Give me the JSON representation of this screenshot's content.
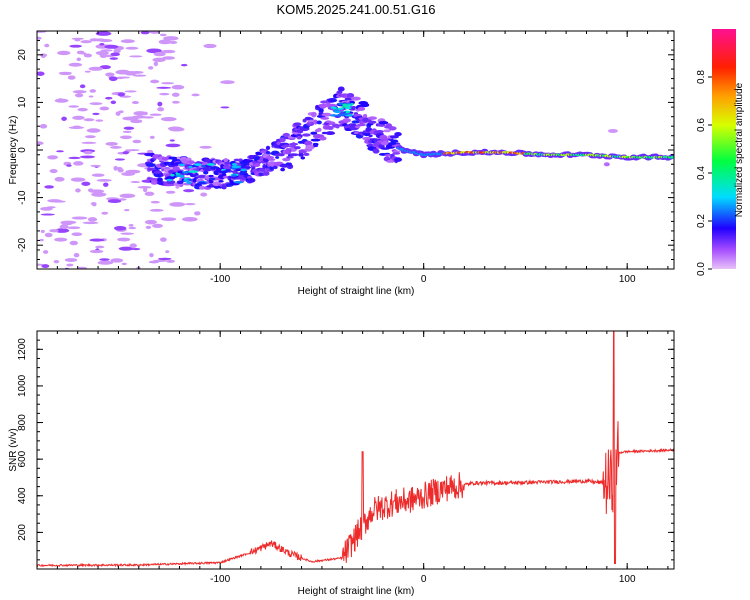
{
  "title": "KOM5.2025.241.00.51.G16",
  "colors": {
    "snr_line": "#ee2b2b",
    "axis": "#000000",
    "bg": "#ffffff"
  },
  "chart_data": [
    {
      "type": "heatmap",
      "name": "spectrogram",
      "xlabel": "Height of straight line (km)",
      "ylabel": "Frequency (Hz)",
      "xlim": [
        -190,
        123
      ],
      "ylim": [
        -25,
        25
      ],
      "x_ticks": [
        -100,
        0,
        100
      ],
      "y_ticks": [
        -20,
        -10,
        0,
        10,
        20
      ],
      "colorbar": {
        "label": "Normalized spectral amplitude",
        "ticks": [
          0.0,
          0.2,
          0.4,
          0.6,
          0.8
        ],
        "range": [
          0,
          1
        ]
      },
      "ridge": {
        "description_points_height_km": [
          -130,
          -110,
          -90,
          -75,
          -60,
          -50,
          -40,
          -30,
          -20,
          -10,
          0,
          20,
          40,
          60,
          80,
          100,
          123
        ],
        "description_points_freq_hz": [
          -4,
          -5,
          -5,
          -2,
          2,
          6,
          9,
          6,
          2,
          0,
          -1,
          -0.5,
          -0.5,
          -1,
          -1,
          -1.5,
          -1.5
        ]
      }
    },
    {
      "type": "line",
      "name": "snr",
      "xlabel": "Height of straight line (km)",
      "ylabel": "SNR (v/v)",
      "xlim": [
        -190,
        123
      ],
      "ylim": [
        0,
        1300
      ],
      "x_ticks": [
        -100,
        0,
        100
      ],
      "y_ticks": [
        200,
        400,
        600,
        800,
        1000,
        1200
      ],
      "profile_x_km": [
        -190,
        -140,
        -100,
        -85,
        -75,
        -65,
        -55,
        -40,
        -32,
        -25,
        -15,
        -5,
        10,
        25,
        40,
        60,
        80,
        88,
        93,
        95,
        98,
        123
      ],
      "profile_snr": [
        20,
        22,
        35,
        90,
        140,
        80,
        40,
        60,
        200,
        320,
        360,
        380,
        440,
        470,
        470,
        475,
        480,
        470,
        470,
        630,
        640,
        650
      ]
    }
  ]
}
